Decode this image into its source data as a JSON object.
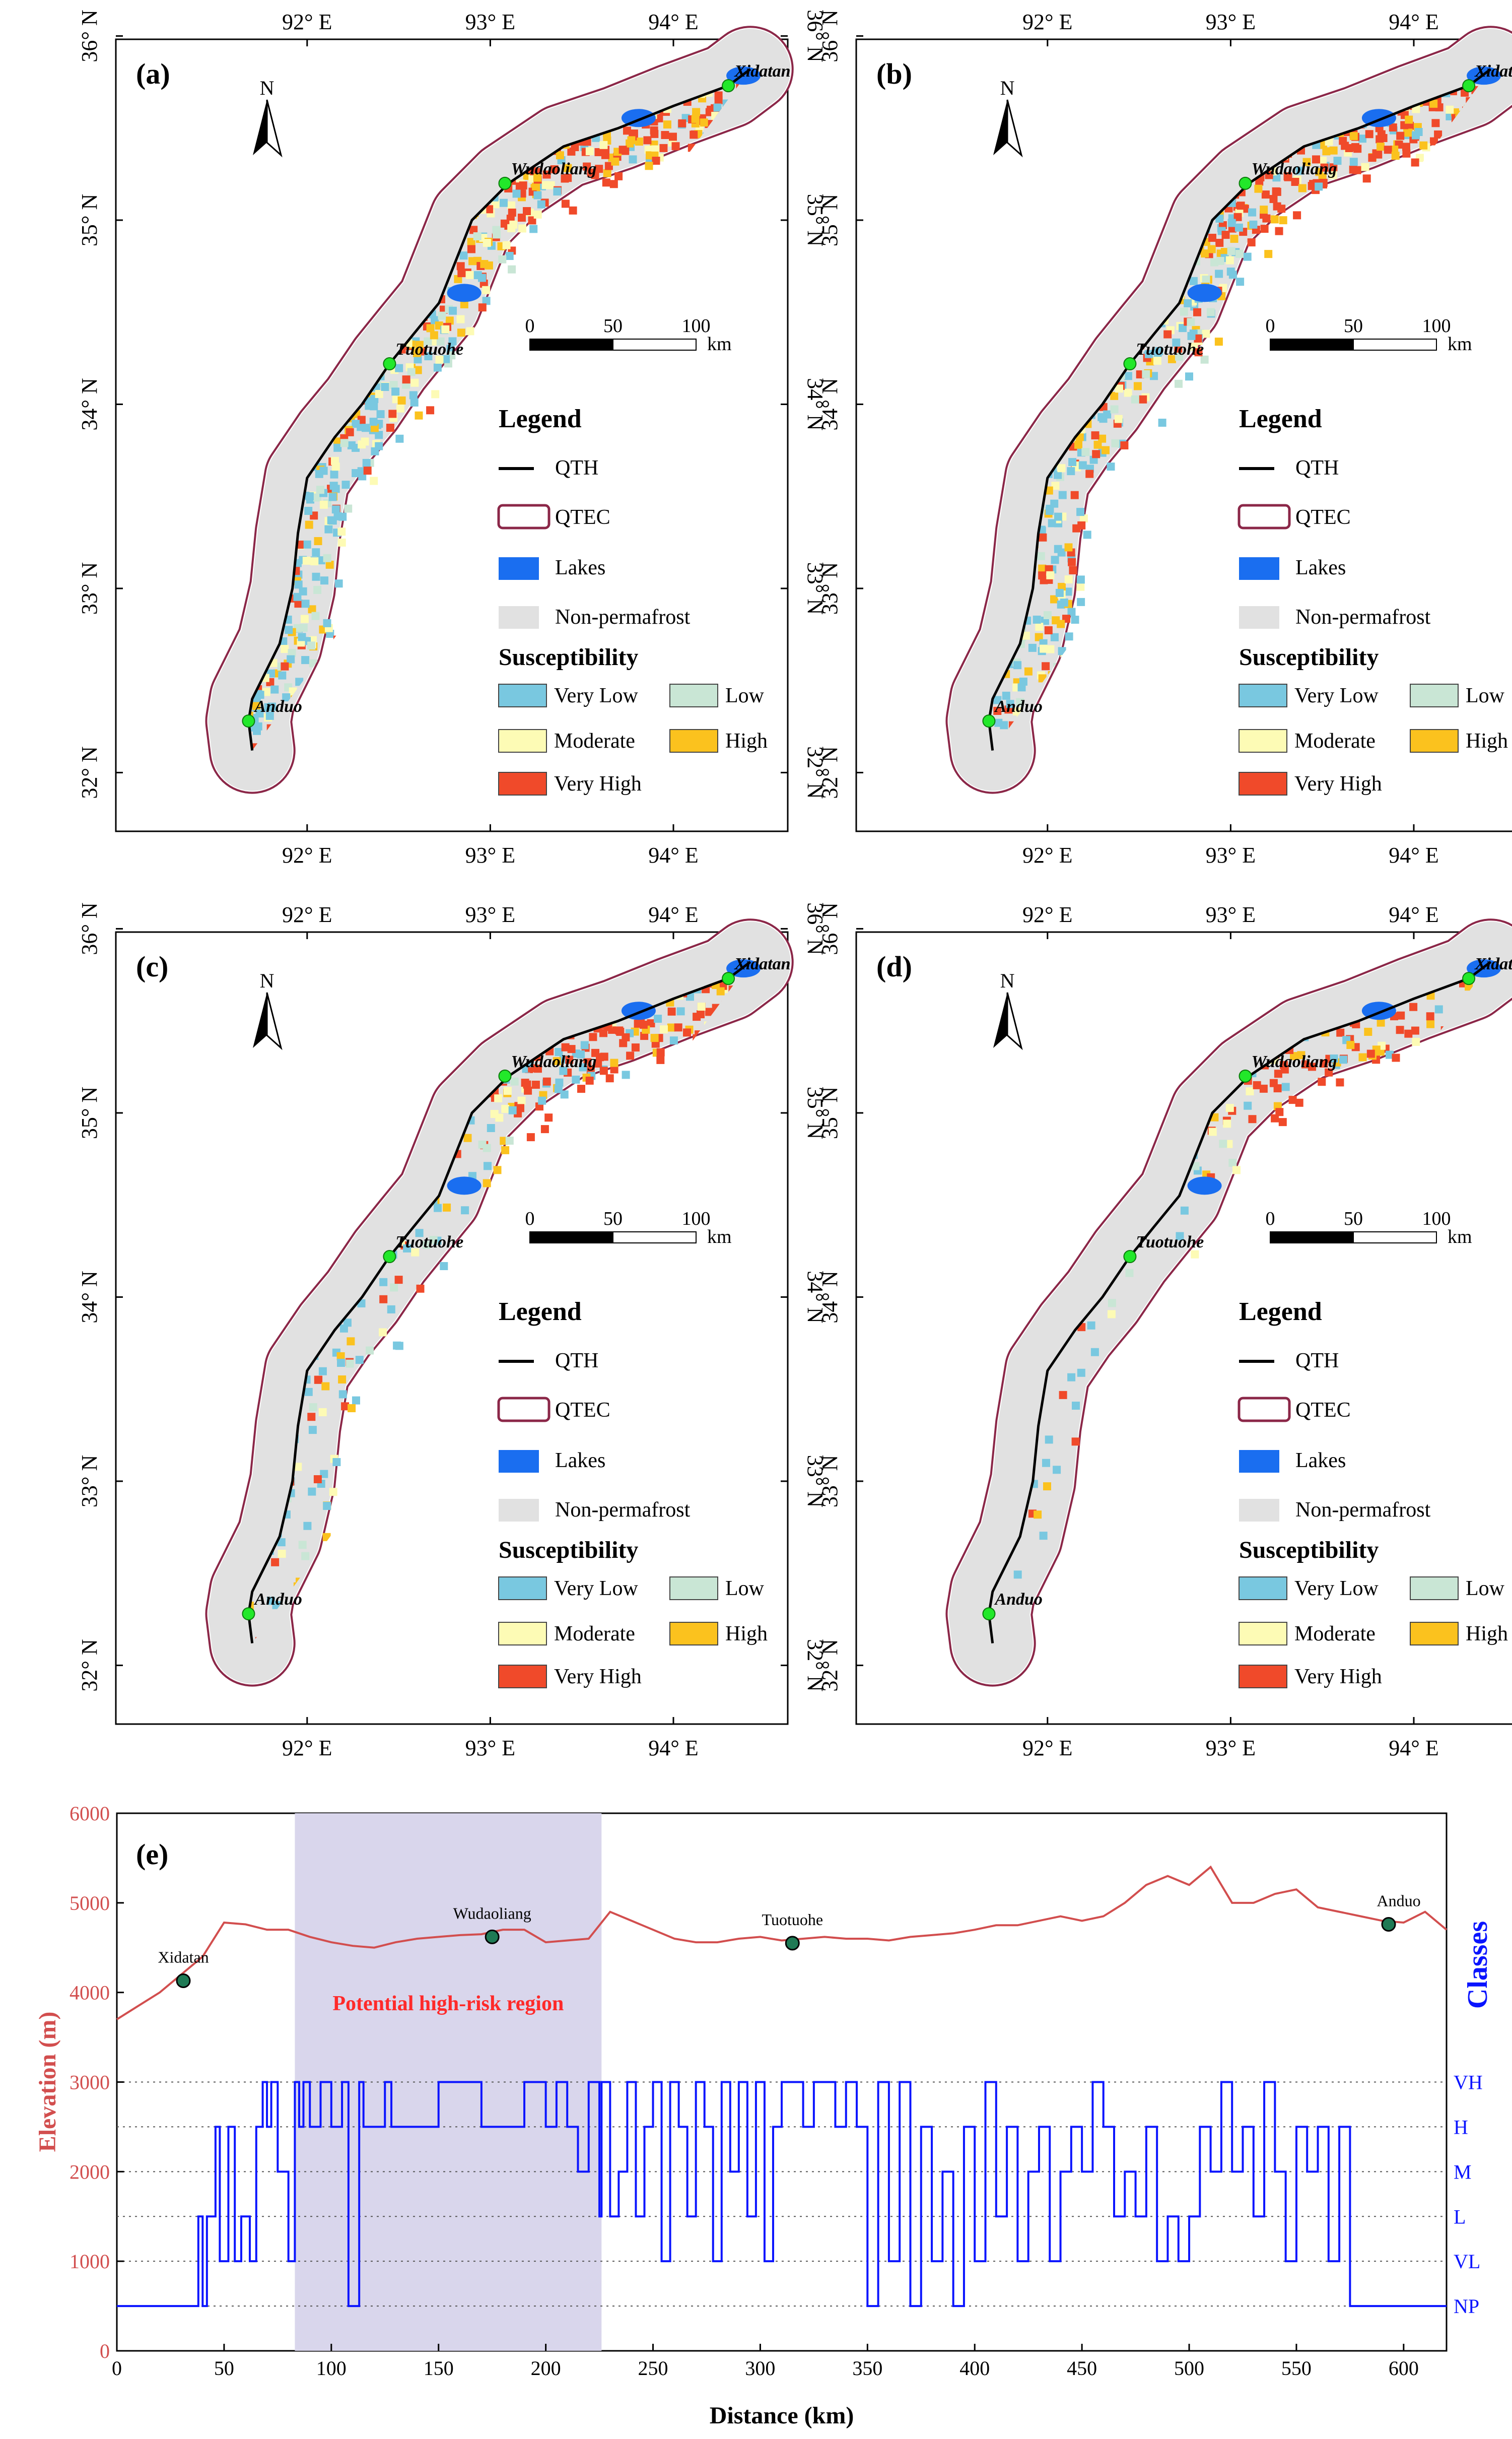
{
  "panels": [
    {
      "tag": "(a)",
      "densities": [
        0.95,
        0.95,
        0.9,
        0.9,
        0.92,
        0.9,
        0.88,
        0.88,
        0.85,
        0.8
      ]
    },
    {
      "tag": "(b)",
      "densities": [
        0.95,
        0.95,
        0.9,
        0.88,
        0.85,
        0.7,
        0.7,
        0.72,
        0.75,
        0.7
      ]
    },
    {
      "tag": "(c)",
      "densities": [
        0.85,
        0.9,
        0.85,
        0.55,
        0.18,
        0.12,
        0.22,
        0.28,
        0.32,
        0.2
      ]
    },
    {
      "tag": "(d)",
      "densities": [
        0.3,
        0.5,
        0.55,
        0.28,
        0.1,
        0.06,
        0.12,
        0.14,
        0.16,
        0.05
      ]
    }
  ],
  "map": {
    "lon_ticks": [
      "92° E",
      "93° E",
      "94° E"
    ],
    "lat_ticks": [
      "36° N",
      "35° N",
      "34° N",
      "33° N",
      "32° N"
    ],
    "north": "N",
    "scale": {
      "labels": [
        "0",
        "50",
        "100"
      ],
      "unit": "km"
    },
    "places": [
      {
        "name": "Xidatan",
        "lon": 94.3,
        "lat": 35.73
      },
      {
        "name": "Wudaoliang",
        "lon": 93.08,
        "lat": 35.2
      },
      {
        "name": "Tuotuohe",
        "lon": 92.45,
        "lat": 34.22
      },
      {
        "name": "Anduo",
        "lon": 91.68,
        "lat": 32.28
      }
    ],
    "route": [
      [
        94.42,
        35.82
      ],
      [
        94.3,
        35.73
      ],
      [
        94.0,
        35.62
      ],
      [
        93.7,
        35.5
      ],
      [
        93.4,
        35.4
      ],
      [
        93.1,
        35.2
      ],
      [
        92.9,
        35.0
      ],
      [
        92.8,
        34.75
      ],
      [
        92.72,
        34.55
      ],
      [
        92.58,
        34.38
      ],
      [
        92.45,
        34.22
      ],
      [
        92.3,
        34.0
      ],
      [
        92.15,
        33.82
      ],
      [
        92.0,
        33.6
      ],
      [
        91.95,
        33.3
      ],
      [
        91.92,
        33.0
      ],
      [
        91.85,
        32.7
      ],
      [
        91.7,
        32.4
      ],
      [
        91.68,
        32.28
      ],
      [
        91.7,
        32.12
      ]
    ]
  },
  "legend": {
    "title": "Legend",
    "items": [
      {
        "label": "QTH"
      },
      {
        "label": "QTEC"
      },
      {
        "label": "Lakes",
        "color": "#1a6ef0"
      },
      {
        "label": "Non-permafrost",
        "color": "#e1e1e1"
      }
    ],
    "sus_title": "Susceptibility",
    "classes": [
      {
        "label": "Very Low",
        "color": "#79c8e0"
      },
      {
        "label": "Low",
        "color": "#c9e6d5"
      },
      {
        "label": "Moderate",
        "color": "#fdfbb5"
      },
      {
        "label": "High",
        "color": "#fbc21e"
      },
      {
        "label": "Very High",
        "color": "#f04a2a"
      }
    ]
  },
  "chart_data": {
    "type": "line",
    "title": "(e)",
    "xlabel": "Distance (km)",
    "ylabel": "Elevation (m)",
    "y2label": "Classes",
    "xlim": [
      0,
      620
    ],
    "ylim": [
      0,
      6000
    ],
    "x_ticks": [
      0,
      50,
      100,
      150,
      200,
      250,
      300,
      350,
      400,
      450,
      500,
      550,
      600
    ],
    "y_ticks": [
      0,
      1000,
      2000,
      3000,
      4000,
      5000,
      6000
    ],
    "class_ticks": [
      {
        "label": "VH",
        "value": 3000
      },
      {
        "label": "H",
        "value": 2500
      },
      {
        "label": "M",
        "value": 2000
      },
      {
        "label": "L",
        "value": 1500
      },
      {
        "label": "VL",
        "value": 1000
      },
      {
        "label": "NP",
        "value": 500
      }
    ],
    "highlight": {
      "x_range": [
        83,
        226
      ],
      "label": "Potential high-risk region"
    },
    "elevation": {
      "name": "Elevation",
      "x": [
        0,
        10,
        20,
        30,
        40,
        50,
        60,
        70,
        80,
        90,
        100,
        110,
        120,
        130,
        140,
        150,
        160,
        170,
        180,
        190,
        200,
        210,
        220,
        230,
        240,
        250,
        260,
        270,
        280,
        290,
        300,
        310,
        320,
        330,
        340,
        350,
        360,
        370,
        380,
        390,
        400,
        410,
        420,
        430,
        440,
        450,
        460,
        470,
        480,
        490,
        500,
        510,
        520,
        530,
        540,
        550,
        560,
        570,
        580,
        590,
        600,
        610,
        620
      ],
      "values": [
        3700,
        3850,
        4000,
        4200,
        4400,
        4780,
        4760,
        4700,
        4700,
        4620,
        4560,
        4520,
        4500,
        4560,
        4600,
        4620,
        4640,
        4650,
        4700,
        4700,
        4560,
        4580,
        4600,
        4900,
        4800,
        4700,
        4600,
        4560,
        4560,
        4600,
        4620,
        4580,
        4600,
        4620,
        4600,
        4600,
        4580,
        4620,
        4640,
        4660,
        4700,
        4750,
        4750,
        4800,
        4850,
        4800,
        4850,
        5000,
        5200,
        5300,
        5200,
        5400,
        5000,
        5000,
        5100,
        5150,
        4950,
        4900,
        4850,
        4800,
        4780,
        4900,
        4700
      ]
    },
    "stations": [
      {
        "name": "Xidatan",
        "x": 31,
        "y": 4130
      },
      {
        "name": "Wudaoliang",
        "x": 175,
        "y": 4620
      },
      {
        "name": "Tuotuohe",
        "x": 315,
        "y": 4550
      },
      {
        "name": "Anduo",
        "x": 593,
        "y": 4760
      }
    ],
    "classes": {
      "name": "Classes",
      "x": [
        0,
        35,
        38,
        40,
        42,
        46,
        48,
        52,
        55,
        58,
        62,
        65,
        68,
        70,
        72,
        75,
        80,
        83,
        85,
        87,
        90,
        95,
        100,
        105,
        108,
        110,
        113,
        115,
        125,
        128,
        150,
        160,
        170,
        190,
        200,
        205,
        210,
        215,
        220,
        225,
        226,
        230,
        234,
        238,
        242,
        246,
        250,
        254,
        258,
        262,
        266,
        270,
        274,
        278,
        282,
        286,
        290,
        294,
        298,
        302,
        306,
        310,
        315,
        320,
        325,
        330,
        335,
        340,
        345,
        350,
        355,
        360,
        365,
        370,
        375,
        380,
        385,
        390,
        395,
        400,
        405,
        410,
        415,
        420,
        425,
        430,
        435,
        440,
        445,
        450,
        455,
        460,
        465,
        470,
        475,
        480,
        485,
        490,
        495,
        500,
        505,
        510,
        515,
        520,
        525,
        530,
        535,
        540,
        545,
        550,
        555,
        560,
        565,
        570,
        575,
        580,
        585,
        590,
        595,
        620
      ],
      "values": [
        500,
        500,
        1500,
        500,
        1500,
        2500,
        1000,
        2500,
        1000,
        1500,
        1000,
        2500,
        3000,
        2500,
        3000,
        2000,
        1000,
        3000,
        2500,
        3000,
        2500,
        3000,
        2500,
        3000,
        500,
        500,
        3000,
        2500,
        3000,
        2500,
        3000,
        3000,
        2500,
        3000,
        2500,
        3000,
        2500,
        2000,
        3000,
        1500,
        3000,
        1500,
        2000,
        3000,
        1500,
        2500,
        3000,
        1000,
        3000,
        2500,
        1500,
        3000,
        2500,
        1000,
        3000,
        2000,
        3000,
        1500,
        3000,
        1000,
        2500,
        3000,
        3000,
        2500,
        3000,
        3000,
        2500,
        3000,
        2500,
        500,
        3000,
        1000,
        3000,
        500,
        2500,
        1000,
        2000,
        500,
        2500,
        1000,
        3000,
        1500,
        2500,
        1000,
        2000,
        2500,
        1000,
        2000,
        2500,
        2000,
        3000,
        2500,
        1500,
        2000,
        1500,
        2500,
        1000,
        1500,
        1000,
        1500,
        2500,
        2000,
        3000,
        2000,
        2500,
        1500,
        3000,
        2000,
        1000,
        2500,
        2000,
        2500,
        1000,
        2500,
        500,
        500,
        500,
        500,
        500,
        500
      ]
    }
  }
}
